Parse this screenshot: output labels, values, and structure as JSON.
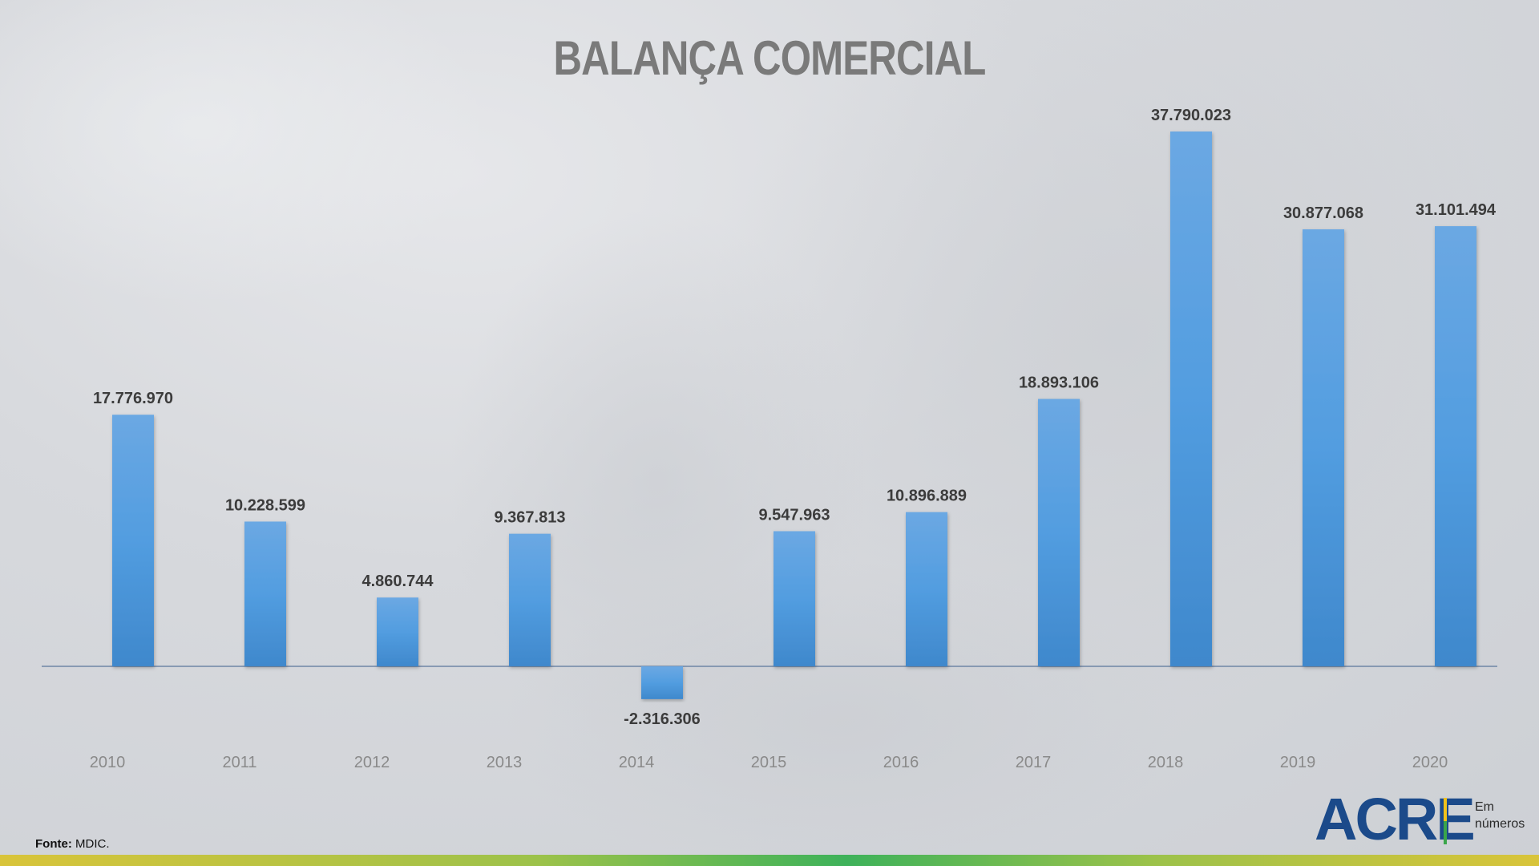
{
  "title": "BALANÇA COMERCIAL",
  "source": {
    "label": "Fonte:",
    "text": "MDIC."
  },
  "logo": {
    "word": "ACRE",
    "line1": "Em",
    "line2": "números",
    "colors": {
      "word": "#1b4a8a",
      "bar_top": "#f2c21a",
      "bar_bottom": "#3aa64a"
    }
  },
  "chart_data": {
    "type": "bar",
    "title": "BALANÇA COMERCIAL",
    "xlabel": "",
    "ylabel": "",
    "categories": [
      "2010",
      "2011",
      "2012",
      "2013",
      "2014",
      "2015",
      "2016",
      "2017",
      "2018",
      "2019",
      "2020"
    ],
    "values": [
      17776970,
      10228599,
      4860744,
      9367813,
      -2316306,
      9547963,
      10896889,
      18893106,
      37790023,
      30877068,
      31101494
    ],
    "value_labels": [
      "17.776.970",
      "10.228.599",
      "4.860.744",
      "9.367.813",
      "-2.316.306",
      "9.547.963",
      "10.896.889",
      "18.893.106",
      "37.790.023",
      "30.877.068",
      "31.101.494"
    ],
    "ylim": [
      -2316306,
      37790023
    ],
    "grid": false,
    "legend": "none",
    "bar_color": "#4f9be0"
  }
}
